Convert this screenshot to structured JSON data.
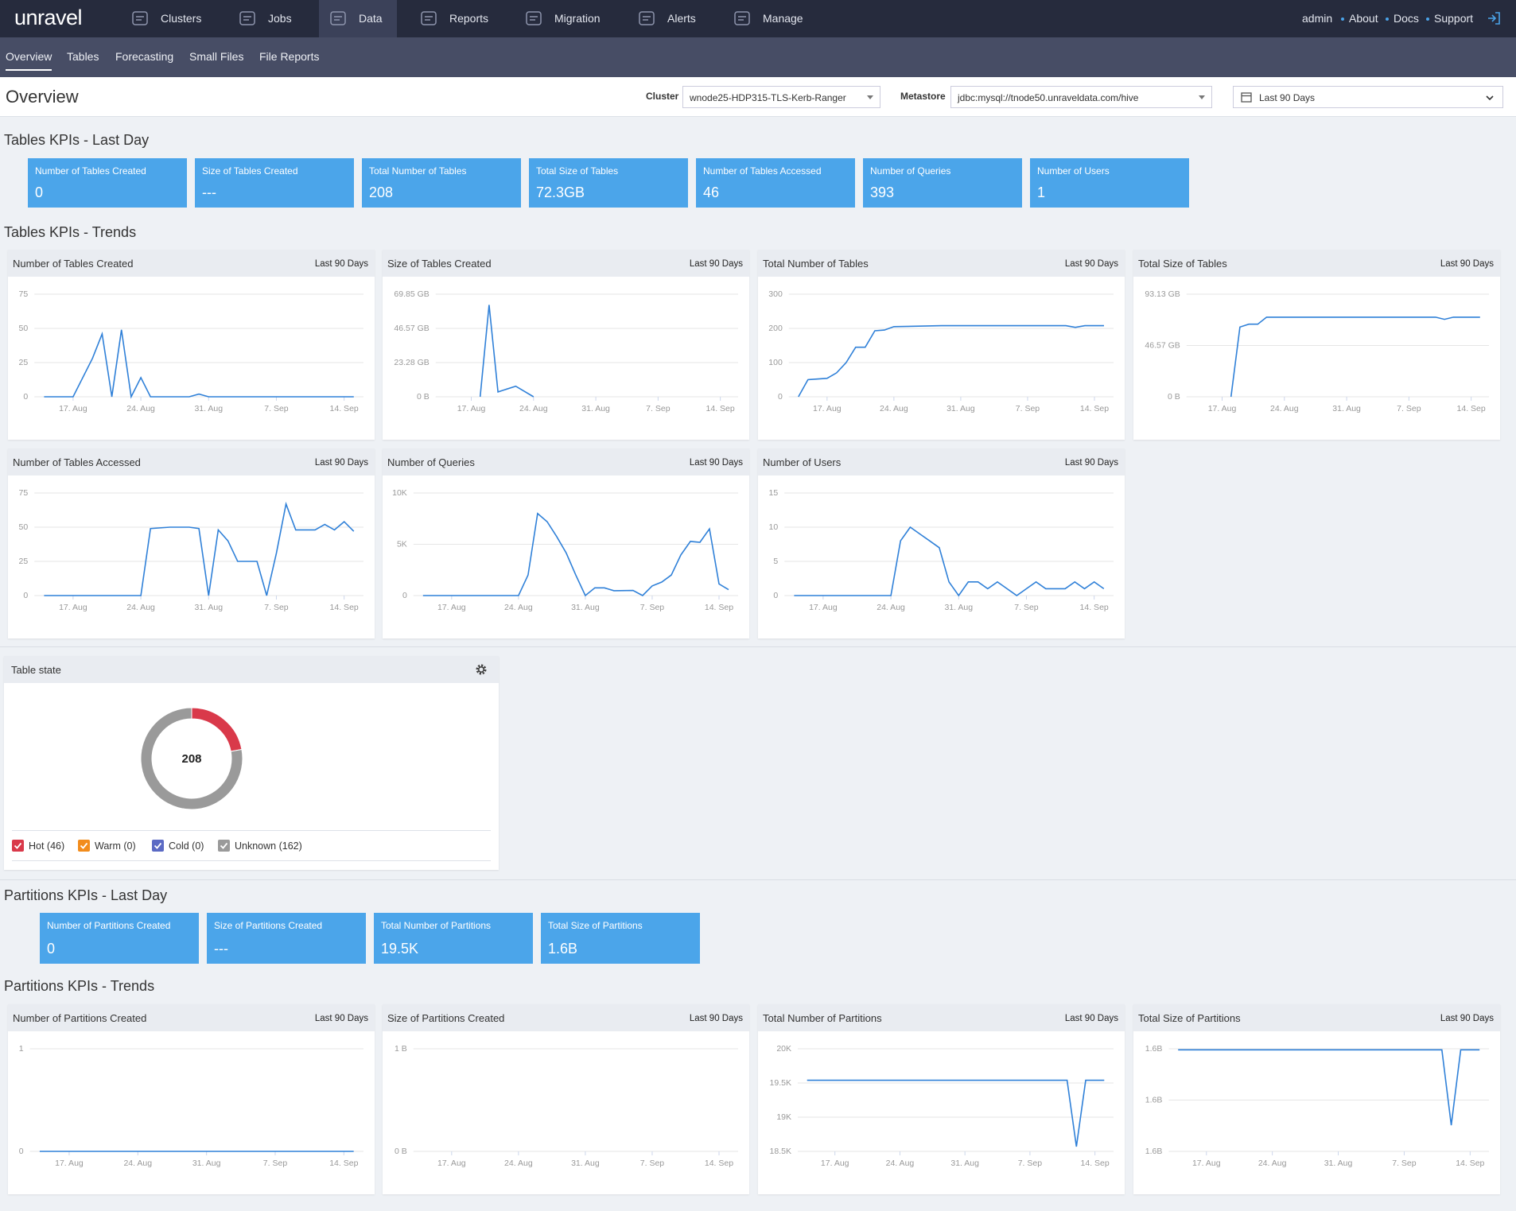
{
  "nav": {
    "logo": "unravel",
    "items": [
      {
        "label": "Clusters"
      },
      {
        "label": "Jobs"
      },
      {
        "label": "Data",
        "active": true
      },
      {
        "label": "Reports"
      },
      {
        "label": "Migration"
      },
      {
        "label": "Alerts"
      },
      {
        "label": "Manage"
      }
    ],
    "links": [
      "admin",
      "About",
      "Docs",
      "Support"
    ]
  },
  "subnav": {
    "tabs": [
      {
        "label": "Overview",
        "active": true
      },
      {
        "label": "Tables"
      },
      {
        "label": "Forecasting"
      },
      {
        "label": "Small Files"
      },
      {
        "label": "File Reports"
      }
    ]
  },
  "header": {
    "title": "Overview",
    "cluster_label": "Cluster",
    "cluster": "wnode25-HDP315-TLS-Kerb-Ranger",
    "metastore_label": "Metastore",
    "metastore": "jdbc:mysql://tnode50.unraveldata.com/hive",
    "range": "Last 90 Days"
  },
  "tables_kpis": {
    "title": "Tables KPIs - Last Day",
    "cards": [
      {
        "label": "Number of Tables Created",
        "value": "0"
      },
      {
        "label": "Size of Tables Created",
        "value": "---"
      },
      {
        "label": "Total Number of Tables",
        "value": "208"
      },
      {
        "label": "Total Size of Tables",
        "value": "72.3GB"
      },
      {
        "label": "Number of Tables Accessed",
        "value": "46"
      },
      {
        "label": "Number of Queries",
        "value": "393"
      },
      {
        "label": "Number of Users",
        "value": "1"
      }
    ]
  },
  "tables_trends": {
    "title": "Tables KPIs - Trends",
    "charts": [
      {
        "type": "line",
        "title": "Number of Tables Created",
        "period": "Last 90 Days",
        "color": "#2f80d8",
        "xlim": [
          "08-13",
          "09-16"
        ],
        "xticks": [
          {
            "value": "08-17",
            "label": "17. Aug"
          },
          {
            "value": "08-24",
            "label": "24. Aug"
          },
          {
            "value": "08-31",
            "label": "31. Aug"
          },
          {
            "value": "09-07",
            "label": "7. Sep"
          },
          {
            "value": "09-14",
            "label": "14. Sep"
          }
        ],
        "ylim": [
          0,
          75
        ],
        "yticks": [
          0,
          25,
          50,
          75
        ],
        "x": [
          "08-14",
          "08-17",
          "08-19",
          "08-20",
          "08-21",
          "08-22",
          "08-23",
          "08-24",
          "08-25",
          "08-29",
          "08-30",
          "08-31",
          "09-15"
        ],
        "values": [
          0,
          0,
          28,
          46,
          0,
          49,
          0,
          14,
          0,
          0,
          2,
          0,
          0
        ]
      },
      {
        "type": "line",
        "title": "Size of Tables Created",
        "period": "Last 90 Days",
        "color": "#2f80d8",
        "xlim": [
          "08-13",
          "09-16"
        ],
        "xticks": [
          {
            "value": "08-17",
            "label": "17. Aug"
          },
          {
            "value": "08-24",
            "label": "24. Aug"
          },
          {
            "value": "08-31",
            "label": "31. Aug"
          },
          {
            "value": "09-07",
            "label": "7. Sep"
          },
          {
            "value": "09-14",
            "label": "14. Sep"
          }
        ],
        "ylim": [
          0,
          69.85
        ],
        "yticks": [
          {
            "value": 0,
            "label": "0 B"
          },
          {
            "value": 23.28,
            "label": "23.28 GB"
          },
          {
            "value": 46.57,
            "label": "46.57 GB"
          },
          {
            "value": 69.85,
            "label": "69.85 GB"
          }
        ],
        "x": [
          "08-18",
          "08-19",
          "08-20",
          "08-22",
          "08-24"
        ],
        "values": [
          0,
          62.6,
          3.3,
          7.2,
          0
        ]
      },
      {
        "type": "line",
        "title": "Total Number of Tables",
        "period": "Last 90 Days",
        "color": "#2f80d8",
        "xlim": [
          "08-13",
          "09-16"
        ],
        "xticks": [
          {
            "value": "08-17",
            "label": "17. Aug"
          },
          {
            "value": "08-24",
            "label": "24. Aug"
          },
          {
            "value": "08-31",
            "label": "31. Aug"
          },
          {
            "value": "09-07",
            "label": "7. Sep"
          },
          {
            "value": "09-14",
            "label": "14. Sep"
          }
        ],
        "ylim": [
          0,
          300
        ],
        "yticks": [
          0,
          100,
          200,
          300
        ],
        "x": [
          "08-14",
          "08-15",
          "08-17",
          "08-18",
          "08-19",
          "08-20",
          "08-21",
          "08-22",
          "08-23",
          "08-24",
          "08-29",
          "09-11",
          "09-12",
          "09-13",
          "09-15"
        ],
        "values": [
          0,
          50,
          54,
          70,
          100,
          145,
          145,
          193,
          195,
          205,
          208,
          208,
          203,
          208,
          208
        ]
      },
      {
        "type": "line",
        "title": "Total Size of Tables",
        "period": "Last 90 Days",
        "color": "#2f80d8",
        "xlim": [
          "08-13",
          "09-16"
        ],
        "xticks": [
          {
            "value": "08-17",
            "label": "17. Aug"
          },
          {
            "value": "08-24",
            "label": "24. Aug"
          },
          {
            "value": "08-31",
            "label": "31. Aug"
          },
          {
            "value": "09-07",
            "label": "7. Sep"
          },
          {
            "value": "09-14",
            "label": "14. Sep"
          }
        ],
        "ylim": [
          0,
          93.13
        ],
        "yticks": [
          {
            "value": 0,
            "label": "0 B"
          },
          {
            "value": 46.57,
            "label": "46.57 GB"
          },
          {
            "value": 93.13,
            "label": "93.13 GB"
          }
        ],
        "x": [
          "08-18",
          "08-19",
          "08-20",
          "08-21",
          "08-22",
          "09-10",
          "09-11",
          "09-12",
          "09-15"
        ],
        "values": [
          0,
          63.3,
          65.9,
          65.9,
          72.3,
          72.3,
          70.3,
          72.3,
          72.3
        ]
      },
      {
        "type": "line",
        "title": "Number of Tables Accessed",
        "period": "Last 90 Days",
        "color": "#2f80d8",
        "xlim": [
          "08-13",
          "09-16"
        ],
        "xticks": [
          {
            "value": "08-17",
            "label": "17. Aug"
          },
          {
            "value": "08-24",
            "label": "24. Aug"
          },
          {
            "value": "08-31",
            "label": "31. Aug"
          },
          {
            "value": "09-07",
            "label": "7. Sep"
          },
          {
            "value": "09-14",
            "label": "14. Sep"
          }
        ],
        "ylim": [
          0,
          75
        ],
        "yticks": [
          0,
          25,
          50,
          75
        ],
        "x": [
          "08-14",
          "08-24",
          "08-25",
          "08-27",
          "08-29",
          "08-30",
          "08-31",
          "09-01",
          "09-02",
          "09-03",
          "09-05",
          "09-06",
          "09-07",
          "09-08",
          "09-09",
          "09-11",
          "09-12",
          "09-13",
          "09-14",
          "09-15"
        ],
        "values": [
          0,
          0,
          49,
          50,
          50,
          49,
          0,
          48,
          40,
          25,
          25,
          0,
          31,
          67,
          48,
          48,
          52,
          48,
          54,
          47
        ]
      },
      {
        "type": "line",
        "title": "Number of Queries",
        "period": "Last 90 Days",
        "color": "#2f80d8",
        "xlim": [
          "08-13",
          "09-16"
        ],
        "xticks": [
          {
            "value": "08-17",
            "label": "17. Aug"
          },
          {
            "value": "08-24",
            "label": "24. Aug"
          },
          {
            "value": "08-31",
            "label": "31. Aug"
          },
          {
            "value": "09-07",
            "label": "7. Sep"
          },
          {
            "value": "09-14",
            "label": "14. Sep"
          }
        ],
        "ylim": [
          0,
          10000
        ],
        "yticks": [
          0,
          {
            "value": 5000,
            "label": "5K"
          },
          {
            "value": 10000,
            "label": "10K"
          }
        ],
        "x": [
          "08-14",
          "08-24",
          "08-25",
          "08-26",
          "08-27",
          "08-28",
          "08-29",
          "08-30",
          "08-31",
          "09-01",
          "09-02",
          "09-03",
          "09-05",
          "09-06",
          "09-07",
          "09-08",
          "09-09",
          "09-10",
          "09-11",
          "09-12",
          "09-13",
          "09-14",
          "09-15"
        ],
        "values": [
          0,
          0,
          2000,
          8000,
          7200,
          5750,
          4150,
          2000,
          0,
          750,
          750,
          470,
          500,
          0,
          940,
          1320,
          2000,
          3960,
          5280,
          5190,
          6500,
          1130,
          570
        ]
      },
      {
        "type": "line",
        "title": "Number of Users",
        "period": "Last 90 Days",
        "color": "#2f80d8",
        "xlim": [
          "08-13",
          "09-16"
        ],
        "xticks": [
          {
            "value": "08-17",
            "label": "17. Aug"
          },
          {
            "value": "08-24",
            "label": "24. Aug"
          },
          {
            "value": "08-31",
            "label": "31. Aug"
          },
          {
            "value": "09-07",
            "label": "7. Sep"
          },
          {
            "value": "09-14",
            "label": "14. Sep"
          }
        ],
        "ylim": [
          0,
          15
        ],
        "yticks": [
          0,
          5,
          10,
          15
        ],
        "x": [
          "08-14",
          "08-24",
          "08-25",
          "08-26",
          "08-27",
          "08-28",
          "08-29",
          "08-30",
          "08-31",
          "09-01",
          "09-02",
          "09-03",
          "09-04",
          "09-05",
          "09-06",
          "09-07",
          "09-08",
          "09-09",
          "09-10",
          "09-11",
          "09-12",
          "09-13",
          "09-14",
          "09-15"
        ],
        "values": [
          0,
          0,
          8,
          10,
          9,
          8,
          7,
          2,
          0,
          2,
          2,
          1,
          2,
          1,
          0,
          1,
          2,
          1,
          1,
          1,
          2,
          1,
          2,
          1
        ]
      }
    ]
  },
  "table_state": {
    "title": "Table state",
    "type": "donut",
    "total": 208,
    "segments": [
      {
        "name": "Hot (46)",
        "value": 46,
        "color": "#d9394a"
      },
      {
        "name": "Warm (0)",
        "value": 0,
        "color": "#f28c1c"
      },
      {
        "name": "Cold (0)",
        "value": 0,
        "color": "#5b6ac4"
      },
      {
        "name": "Unknown (162)",
        "value": 162,
        "color": "#9a9a9a"
      }
    ]
  },
  "partitions_kpis": {
    "title": "Partitions KPIs - Last Day",
    "cards": [
      {
        "label": "Number of Partitions Created",
        "value": "0"
      },
      {
        "label": "Size of Partitions Created",
        "value": "---"
      },
      {
        "label": "Total Number of Partitions",
        "value": "19.5K"
      },
      {
        "label": "Total Size of Partitions",
        "value": "1.6B"
      }
    ]
  },
  "partitions_trends": {
    "title": "Partitions KPIs - Trends",
    "charts": [
      {
        "type": "line",
        "title": "Number of Partitions Created",
        "period": "Last 90 Days",
        "color": "#2f80d8",
        "xlim": [
          "08-13",
          "09-16"
        ],
        "xticks": [
          {
            "value": "08-17",
            "label": "17. Aug"
          },
          {
            "value": "08-24",
            "label": "24. Aug"
          },
          {
            "value": "08-31",
            "label": "31. Aug"
          },
          {
            "value": "09-07",
            "label": "7. Sep"
          },
          {
            "value": "09-14",
            "label": "14. Sep"
          }
        ],
        "ylim": [
          0,
          1
        ],
        "yticks": [
          0,
          1
        ],
        "x": [
          "08-14",
          "09-15"
        ],
        "values": [
          0,
          0
        ]
      },
      {
        "type": "line",
        "title": "Size of Partitions Created",
        "period": "Last 90 Days",
        "color": "#2f80d8",
        "xlim": [
          "08-13",
          "09-16"
        ],
        "xticks": [
          {
            "value": "08-17",
            "label": "17. Aug"
          },
          {
            "value": "08-24",
            "label": "24. Aug"
          },
          {
            "value": "08-31",
            "label": "31. Aug"
          },
          {
            "value": "09-07",
            "label": "7. Sep"
          },
          {
            "value": "09-14",
            "label": "14. Sep"
          }
        ],
        "ylim": [
          0,
          1
        ],
        "yticks": [
          {
            "value": 0,
            "label": "0 B"
          },
          {
            "value": 1,
            "label": "1 B"
          }
        ],
        "x": [],
        "values": []
      },
      {
        "type": "line",
        "title": "Total Number of Partitions",
        "period": "Last 90 Days",
        "color": "#2f80d8",
        "xlim": [
          "08-13",
          "09-16"
        ],
        "xticks": [
          {
            "value": "08-17",
            "label": "17. Aug"
          },
          {
            "value": "08-24",
            "label": "24. Aug"
          },
          {
            "value": "08-31",
            "label": "31. Aug"
          },
          {
            "value": "09-07",
            "label": "7. Sep"
          },
          {
            "value": "09-14",
            "label": "14. Sep"
          }
        ],
        "ylim": [
          18500,
          20000
        ],
        "yticks": [
          {
            "value": 18500,
            "label": "18.5K"
          },
          {
            "value": 19000,
            "label": "19K"
          },
          {
            "value": 19500,
            "label": "19.5K"
          },
          {
            "value": 20000,
            "label": "20K"
          }
        ],
        "x": [
          "08-14",
          "09-11",
          "09-12",
          "09-13",
          "09-15"
        ],
        "values": [
          19540,
          19540,
          18570,
          19540,
          19540
        ]
      },
      {
        "type": "line",
        "title": "Total Size of Partitions",
        "period": "Last 90 Days",
        "color": "#2f80d8",
        "xlim": [
          "08-13",
          "09-16"
        ],
        "xticks": [
          {
            "value": "08-17",
            "label": "17. Aug"
          },
          {
            "value": "08-24",
            "label": "24. Aug"
          },
          {
            "value": "08-31",
            "label": "31. Aug"
          },
          {
            "value": "09-07",
            "label": "7. Sep"
          },
          {
            "value": "09-14",
            "label": "14. Sep"
          }
        ],
        "ylim": [
          1580000000,
          1620000000
        ],
        "yticks": [
          {
            "value": 1580000000,
            "label": "1.6B"
          },
          {
            "value": 1600000000,
            "label": "1.6B"
          },
          {
            "value": 1620000000,
            "label": "1.6B"
          }
        ],
        "x": [
          "08-14",
          "09-11",
          "09-12",
          "09-13",
          "09-15"
        ],
        "values": [
          1619600000,
          1619600000,
          1590200000,
          1619600000,
          1619600000
        ]
      }
    ]
  }
}
